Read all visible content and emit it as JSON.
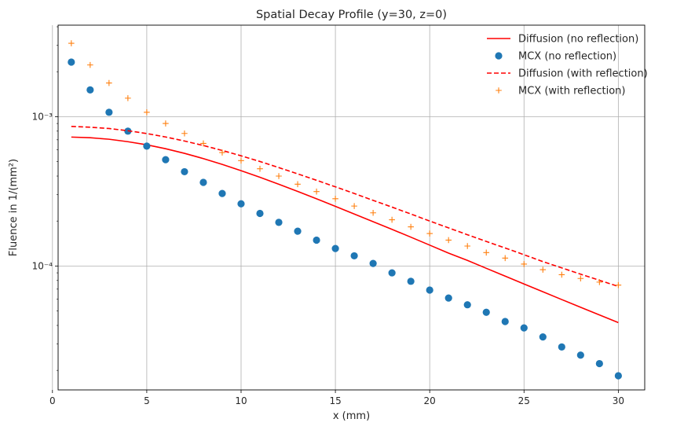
{
  "chart_data": {
    "type": "line",
    "title": "Spatial Decay Profile (y=30, z=0)",
    "xlabel": "x (mm)",
    "ylabel": "Fluence in 1/(mm²)",
    "xlim": [
      0.3,
      31.4
    ],
    "ylim": [
      1.48e-05,
      0.0041
    ],
    "yscale": "log",
    "grid": true,
    "legend_position": "top-right",
    "x_ticks": [
      0,
      5,
      10,
      15,
      20,
      25,
      30
    ],
    "x_tick_labels": [
      "0",
      "5",
      "10",
      "15",
      "20",
      "25",
      "30"
    ],
    "y_ticks": [
      0.0001,
      0.001
    ],
    "y_tick_labels": [
      "10⁻⁴",
      "10⁻³"
    ],
    "x": [
      1,
      2,
      3,
      4,
      5,
      6,
      7,
      8,
      9,
      10,
      11,
      12,
      13,
      14,
      15,
      16,
      17,
      18,
      19,
      20,
      21,
      22,
      23,
      24,
      25,
      26,
      27,
      28,
      29,
      30
    ],
    "series": [
      {
        "name": "Diffusion (no reflection)",
        "style": "solid-line",
        "color": "#ff0000",
        "values": [
          0.00073,
          0.000723,
          0.000706,
          0.00068,
          0.000648,
          0.00061,
          0.000568,
          0.000524,
          0.000479,
          0.000435,
          0.000393,
          0.000353,
          0.000316,
          0.000282,
          0.000251,
          0.000223,
          0.000198,
          0.000176,
          0.000156,
          0.000138,
          0.000122,
          0.000109,
          9.65e-05,
          8.55e-05,
          7.58e-05,
          6.72e-05,
          5.96e-05,
          5.29e-05,
          4.7e-05,
          4.18e-05
        ]
      },
      {
        "name": "MCX (no reflection)",
        "style": "circle-markers",
        "color": "#1f77b4",
        "values": [
          0.00232,
          0.00151,
          0.00107,
          0.0008,
          0.000635,
          0.000515,
          0.000428,
          0.000363,
          0.000306,
          0.000261,
          0.000225,
          0.000196,
          0.000171,
          0.000149,
          0.000131,
          0.000117,
          0.000104,
          9e-05,
          7.9e-05,
          6.9e-05,
          6.1e-05,
          5.5e-05,
          4.9e-05,
          4.25e-05,
          3.85e-05,
          3.35e-05,
          2.87e-05,
          2.53e-05,
          2.22e-05,
          1.84e-05
        ]
      },
      {
        "name": "Diffusion (with reflection)",
        "style": "dashed-line",
        "color": "#ff0000",
        "values": [
          0.00086,
          0.00085,
          0.000833,
          0.000805,
          0.000771,
          0.000731,
          0.000687,
          0.000641,
          0.000594,
          0.000547,
          0.000501,
          0.000456,
          0.000414,
          0.000375,
          0.000339,
          0.000306,
          0.000275,
          0.000248,
          0.000223,
          0.0002,
          0.00018,
          0.000162,
          0.000146,
          0.000132,
          0.000119,
          0.000107,
          9.71e-05,
          8.82e-05,
          8.02e-05,
          7.3e-05
        ]
      },
      {
        "name": "MCX (with reflection)",
        "style": "plus-markers",
        "color": "#ff7f0e",
        "values": [
          0.0031,
          0.00222,
          0.00168,
          0.00133,
          0.00107,
          0.0009,
          0.000772,
          0.000662,
          0.000575,
          0.000508,
          0.000448,
          0.0004,
          0.000353,
          0.000315,
          0.000282,
          0.000252,
          0.000227,
          0.000204,
          0.000183,
          0.000165,
          0.000149,
          0.000136,
          0.000123,
          0.000113,
          0.000103,
          9.45e-05,
          8.75e-05,
          8.25e-05,
          7.8e-05,
          7.45e-05
        ]
      }
    ]
  }
}
